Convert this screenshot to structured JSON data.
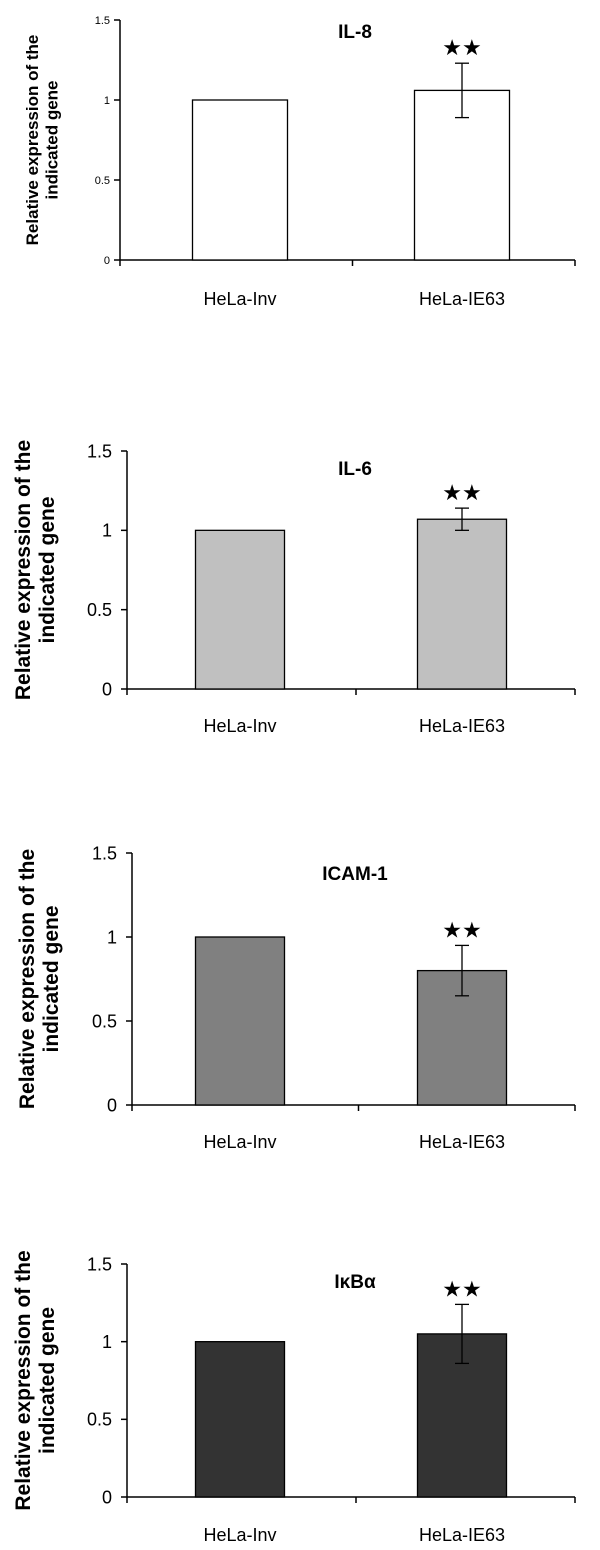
{
  "chart_data": [
    {
      "type": "bar",
      "title": "IL-8",
      "ylabel": [
        "Relative expression of the",
        "indicated gene"
      ],
      "ylim": [
        0,
        1.5
      ],
      "yticks": [
        "0",
        "0.5",
        "1",
        "1.5"
      ],
      "categories": [
        "HeLa-Inv",
        "HeLa-IE63"
      ],
      "values": [
        1.0,
        1.06
      ],
      "error": [
        0,
        0.17
      ],
      "significance": [
        "",
        "★★"
      ],
      "color": "#ffffff"
    },
    {
      "type": "bar",
      "title": "IL-6",
      "ylabel": [
        "Relative expression of the",
        "indicated gene"
      ],
      "ylim": [
        0,
        1.5
      ],
      "yticks": [
        "0",
        "0.5",
        "1",
        "1.5"
      ],
      "categories": [
        "HeLa-Inv",
        "HeLa-IE63"
      ],
      "values": [
        1.0,
        1.07
      ],
      "error": [
        0,
        0.07
      ],
      "significance": [
        "",
        "★★"
      ],
      "color": "#c0c0c0"
    },
    {
      "type": "bar",
      "title": "ICAM-1",
      "ylabel": [
        "Relative expression of the",
        "indicated gene"
      ],
      "ylim": [
        0,
        1.5
      ],
      "yticks": [
        "0",
        "0.5",
        "1",
        "1.5"
      ],
      "categories": [
        "HeLa-Inv",
        "HeLa-IE63"
      ],
      "values": [
        1.0,
        0.8
      ],
      "error": [
        0,
        0.15
      ],
      "significance": [
        "",
        "★★"
      ],
      "color": "#808080"
    },
    {
      "type": "bar",
      "title": "IκBα",
      "ylabel": [
        "Relative expression of the",
        "indicated gene"
      ],
      "ylim": [
        0,
        1.5
      ],
      "yticks": [
        "0",
        "0.5",
        "1",
        "1.5"
      ],
      "categories": [
        "HeLa-Inv",
        "HeLa-IE63"
      ],
      "values": [
        1.0,
        1.05
      ],
      "error": [
        0,
        0.19
      ],
      "significance": [
        "",
        "★★"
      ],
      "color": "#333333"
    }
  ]
}
